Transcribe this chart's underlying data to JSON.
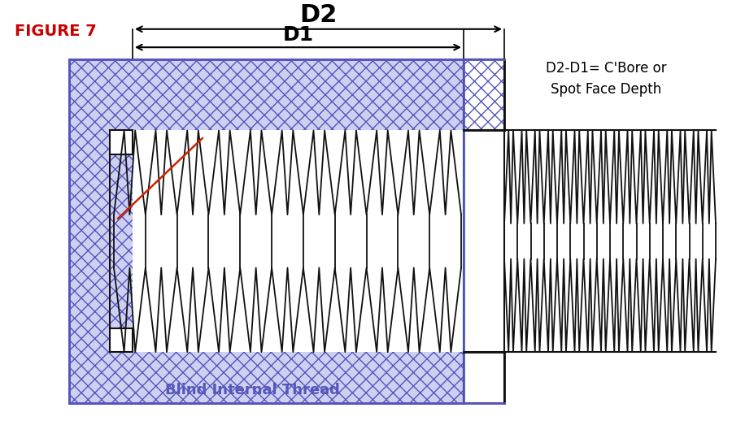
{
  "title": "FIGURE 7",
  "title_color": "#cc0000",
  "bg_color": "#ffffff",
  "hatch_color": "#5555bb",
  "hatch_bg": "#cdd0f0",
  "thread_color": "#111111",
  "red_line_color": "#cc2200",
  "border_color": "#5555bb",
  "n_internal_threads": 11,
  "n_external_threads": 16,
  "annotation": "D2-D1= C'Bore or\nSpot Face Depth",
  "blind_thread_label": "Blind Internal Thread"
}
